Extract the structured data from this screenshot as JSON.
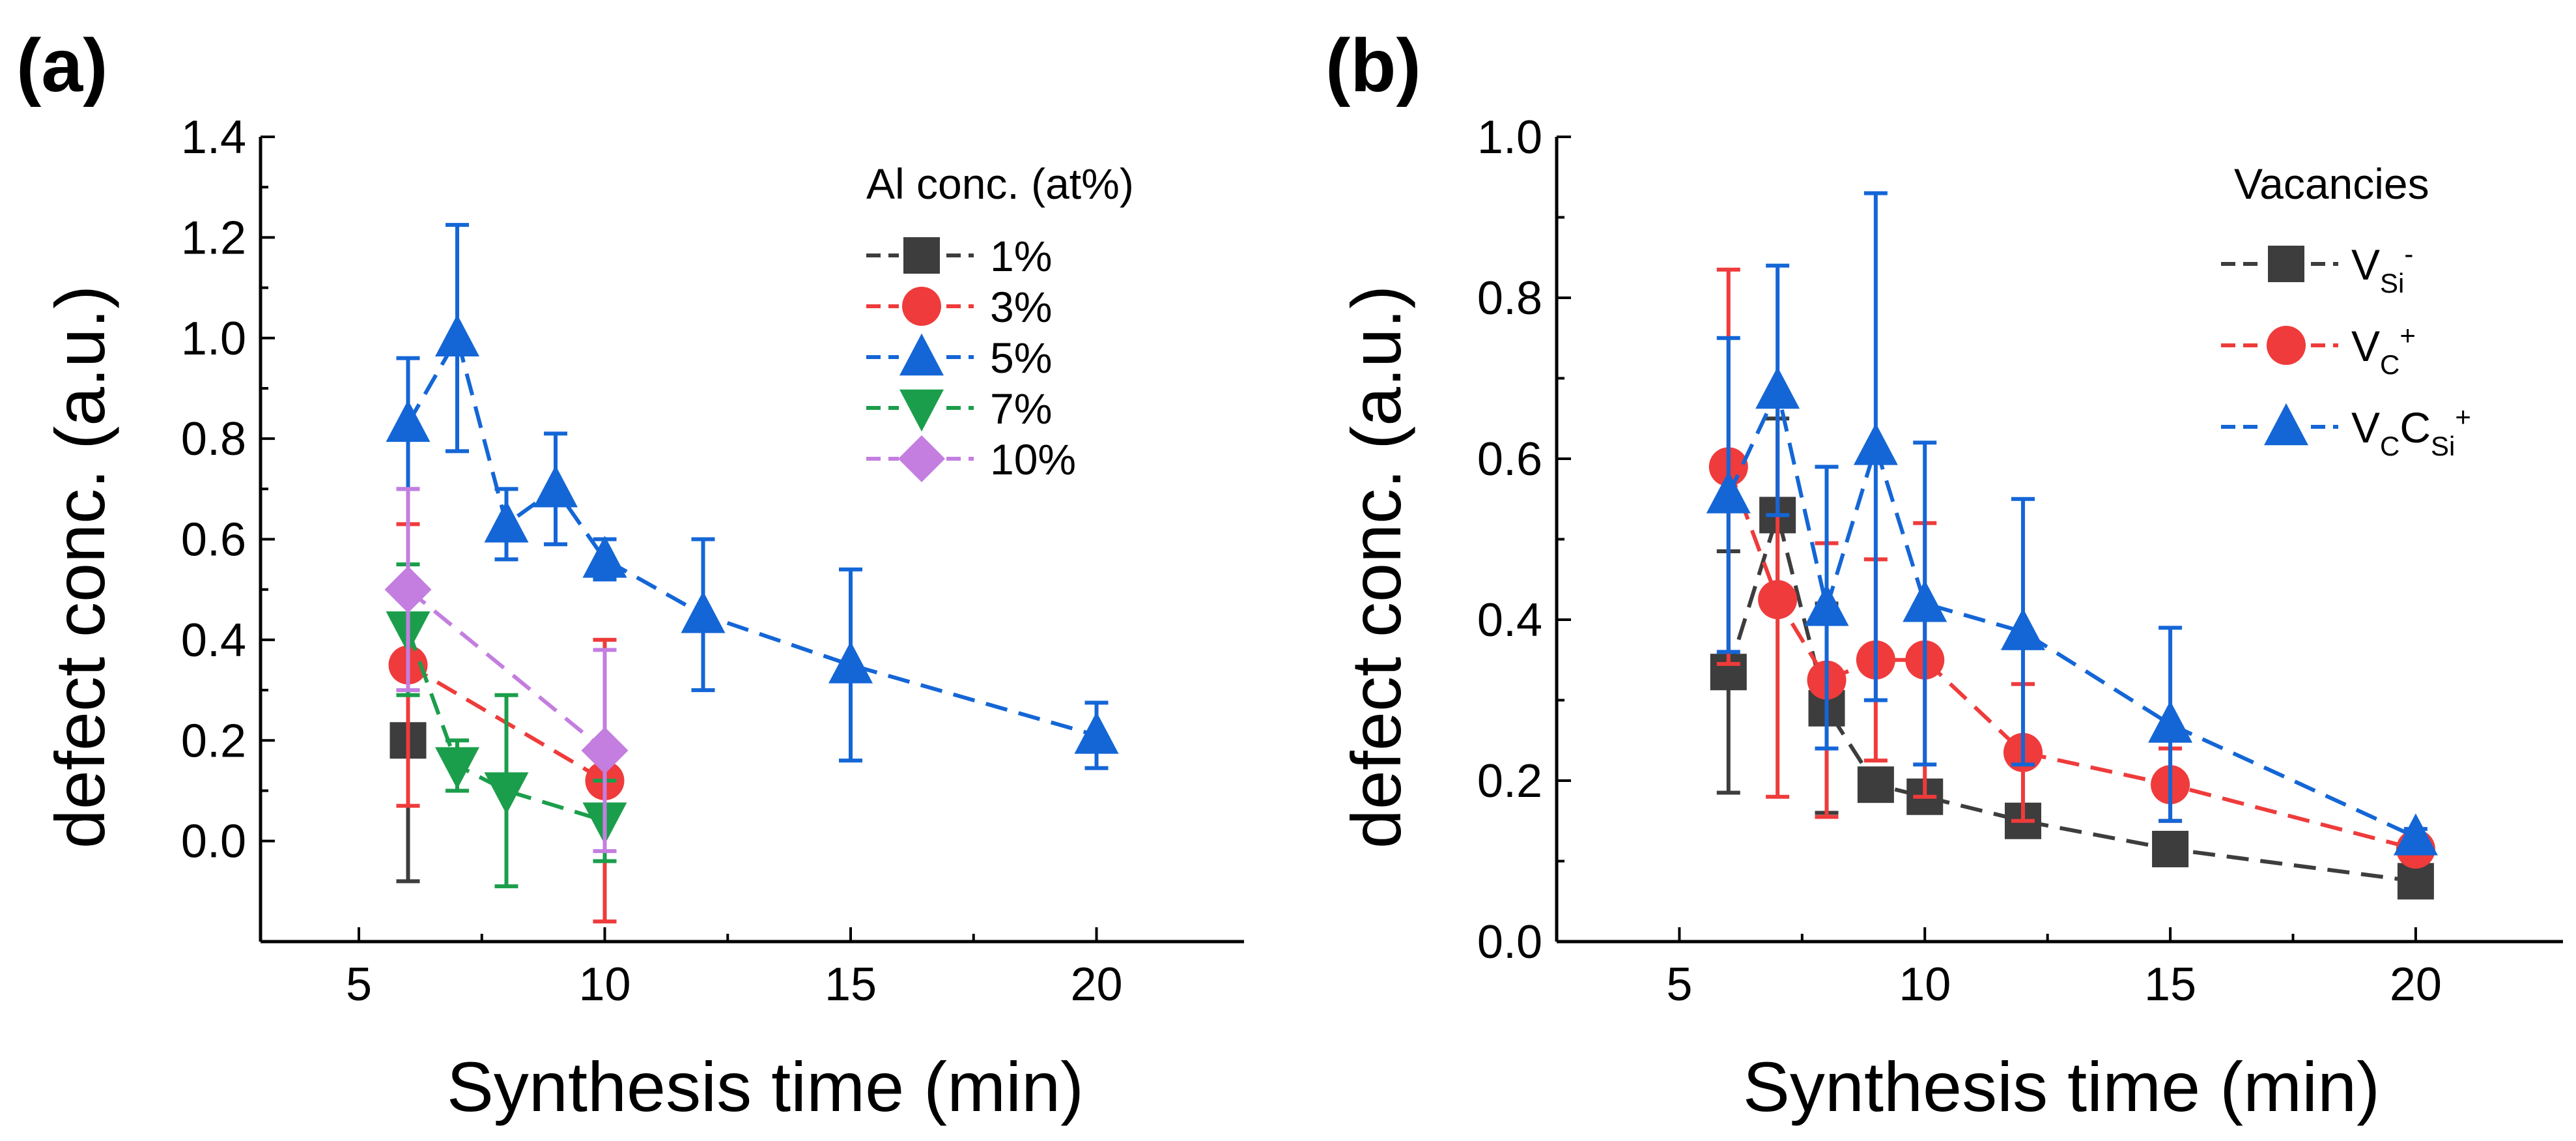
{
  "colors": {
    "1%": "#3d3d3d",
    "3%": "#ef3b3b",
    "5%": "#1466d6",
    "7%": "#1b9e4b",
    "10%": "#c37ee0",
    "VSi": "#3d3d3d",
    "VC": "#ef3b3b",
    "VCCSi": "#1466d6"
  },
  "chart_data": [
    {
      "id": "a",
      "panel_label": "(a)",
      "type": "line",
      "xlabel": "Synthesis time (min)",
      "ylabel": "defect conc. (a.u.)",
      "xlim": [
        3,
        23
      ],
      "ylim": [
        -0.2,
        1.4
      ],
      "xticks": [
        5,
        10,
        15,
        20
      ],
      "xtick_labels": [
        "5",
        "10",
        "15",
        "20"
      ],
      "yticks": [
        0.0,
        0.2,
        0.4,
        0.6,
        0.8,
        1.0,
        1.2,
        1.4
      ],
      "ytick_labels": [
        "0.0",
        "0.2",
        "0.4",
        "0.6",
        "0.8",
        "1.0",
        "1.2",
        "1.4"
      ],
      "legend_title": "Al conc. (at%)",
      "legend_position": "top-right",
      "series": [
        {
          "name": "1%",
          "key": "1%",
          "marker": "square",
          "points": [
            [
              6,
              0.2,
              0.28
            ]
          ]
        },
        {
          "name": "3%",
          "key": "3%",
          "marker": "circle",
          "points": [
            [
              6,
              0.35,
              0.28
            ],
            [
              10,
              0.12,
              0.28
            ]
          ]
        },
        {
          "name": "5%",
          "key": "5%",
          "marker": "triangle-up",
          "points": [
            [
              6,
              0.83,
              0.13
            ],
            [
              7,
              1.0,
              0.225
            ],
            [
              8,
              0.63,
              0.07
            ],
            [
              9,
              0.7,
              0.11
            ],
            [
              10,
              0.56,
              0.04
            ],
            [
              12,
              0.45,
              0.15
            ],
            [
              15,
              0.35,
              0.19
            ],
            [
              20,
              0.21,
              0.065
            ]
          ]
        },
        {
          "name": "7%",
          "key": "7%",
          "marker": "triangle-down",
          "points": [
            [
              6,
              0.42,
              0.13
            ],
            [
              7,
              0.15,
              0.05
            ],
            [
              8,
              0.1,
              0.19
            ],
            [
              10,
              0.04,
              0.08
            ]
          ]
        },
        {
          "name": "10%",
          "key": "10%",
          "marker": "diamond",
          "points": [
            [
              6,
              0.5,
              0.2
            ],
            [
              10,
              0.18,
              0.2
            ]
          ]
        }
      ]
    },
    {
      "id": "b",
      "panel_label": "(b)",
      "type": "line",
      "xlabel": "Synthesis time (min)",
      "ylabel": "defect conc. (a.u.)",
      "xlim": [
        2.5,
        23
      ],
      "ylim": [
        0.0,
        1.0
      ],
      "xticks": [
        5,
        10,
        15,
        20
      ],
      "xtick_labels": [
        "5",
        "10",
        "15",
        "20"
      ],
      "yticks": [
        0.0,
        0.2,
        0.4,
        0.6,
        0.8,
        1.0
      ],
      "ytick_labels": [
        "0.0",
        "0.2",
        "0.4",
        "0.6",
        "0.8",
        "1.0"
      ],
      "legend_title": "Vacancies",
      "legend_position": "top-right",
      "series": [
        {
          "name": "VSi-",
          "label_main": "V",
          "label_sub": "Si",
          "label_sup": "-",
          "key": "VSi",
          "marker": "square",
          "points": [
            [
              6,
              0.335,
              0.15
            ],
            [
              7,
              0.53,
              0.12
            ],
            [
              8,
              0.29,
              0.13
            ],
            [
              9,
              0.195,
              0.01
            ],
            [
              10,
              0.18,
              0.01
            ],
            [
              12,
              0.15,
              0.01
            ],
            [
              15,
              0.115,
              0.01
            ],
            [
              20,
              0.075,
              0.01
            ]
          ]
        },
        {
          "name": "VC+",
          "label_main": "V",
          "label_sub": "C",
          "label_sup": "+",
          "key": "VC",
          "marker": "circle",
          "points": [
            [
              6,
              0.59,
              0.245
            ],
            [
              7,
              0.425,
              0.245
            ],
            [
              8,
              0.325,
              0.17
            ],
            [
              9,
              0.35,
              0.125
            ],
            [
              10,
              0.35,
              0.17
            ],
            [
              12,
              0.235,
              0.085
            ],
            [
              15,
              0.195,
              0.045
            ],
            [
              20,
              0.115,
              0.01
            ]
          ]
        },
        {
          "name": "VCCSi+",
          "label_main": "V",
          "label_sub": "C",
          "label_main2": "C",
          "label_sub2": "Si",
          "label_sup": "+",
          "key": "VCCSi",
          "marker": "triangle-up",
          "points": [
            [
              6,
              0.555,
              0.195
            ],
            [
              7,
              0.685,
              0.155
            ],
            [
              8,
              0.415,
              0.175
            ],
            [
              9,
              0.615,
              0.315
            ],
            [
              10,
              0.42,
              0.2
            ],
            [
              12,
              0.385,
              0.165
            ],
            [
              15,
              0.27,
              0.12
            ],
            [
              20,
              0.13,
              0.01
            ]
          ]
        }
      ]
    }
  ]
}
